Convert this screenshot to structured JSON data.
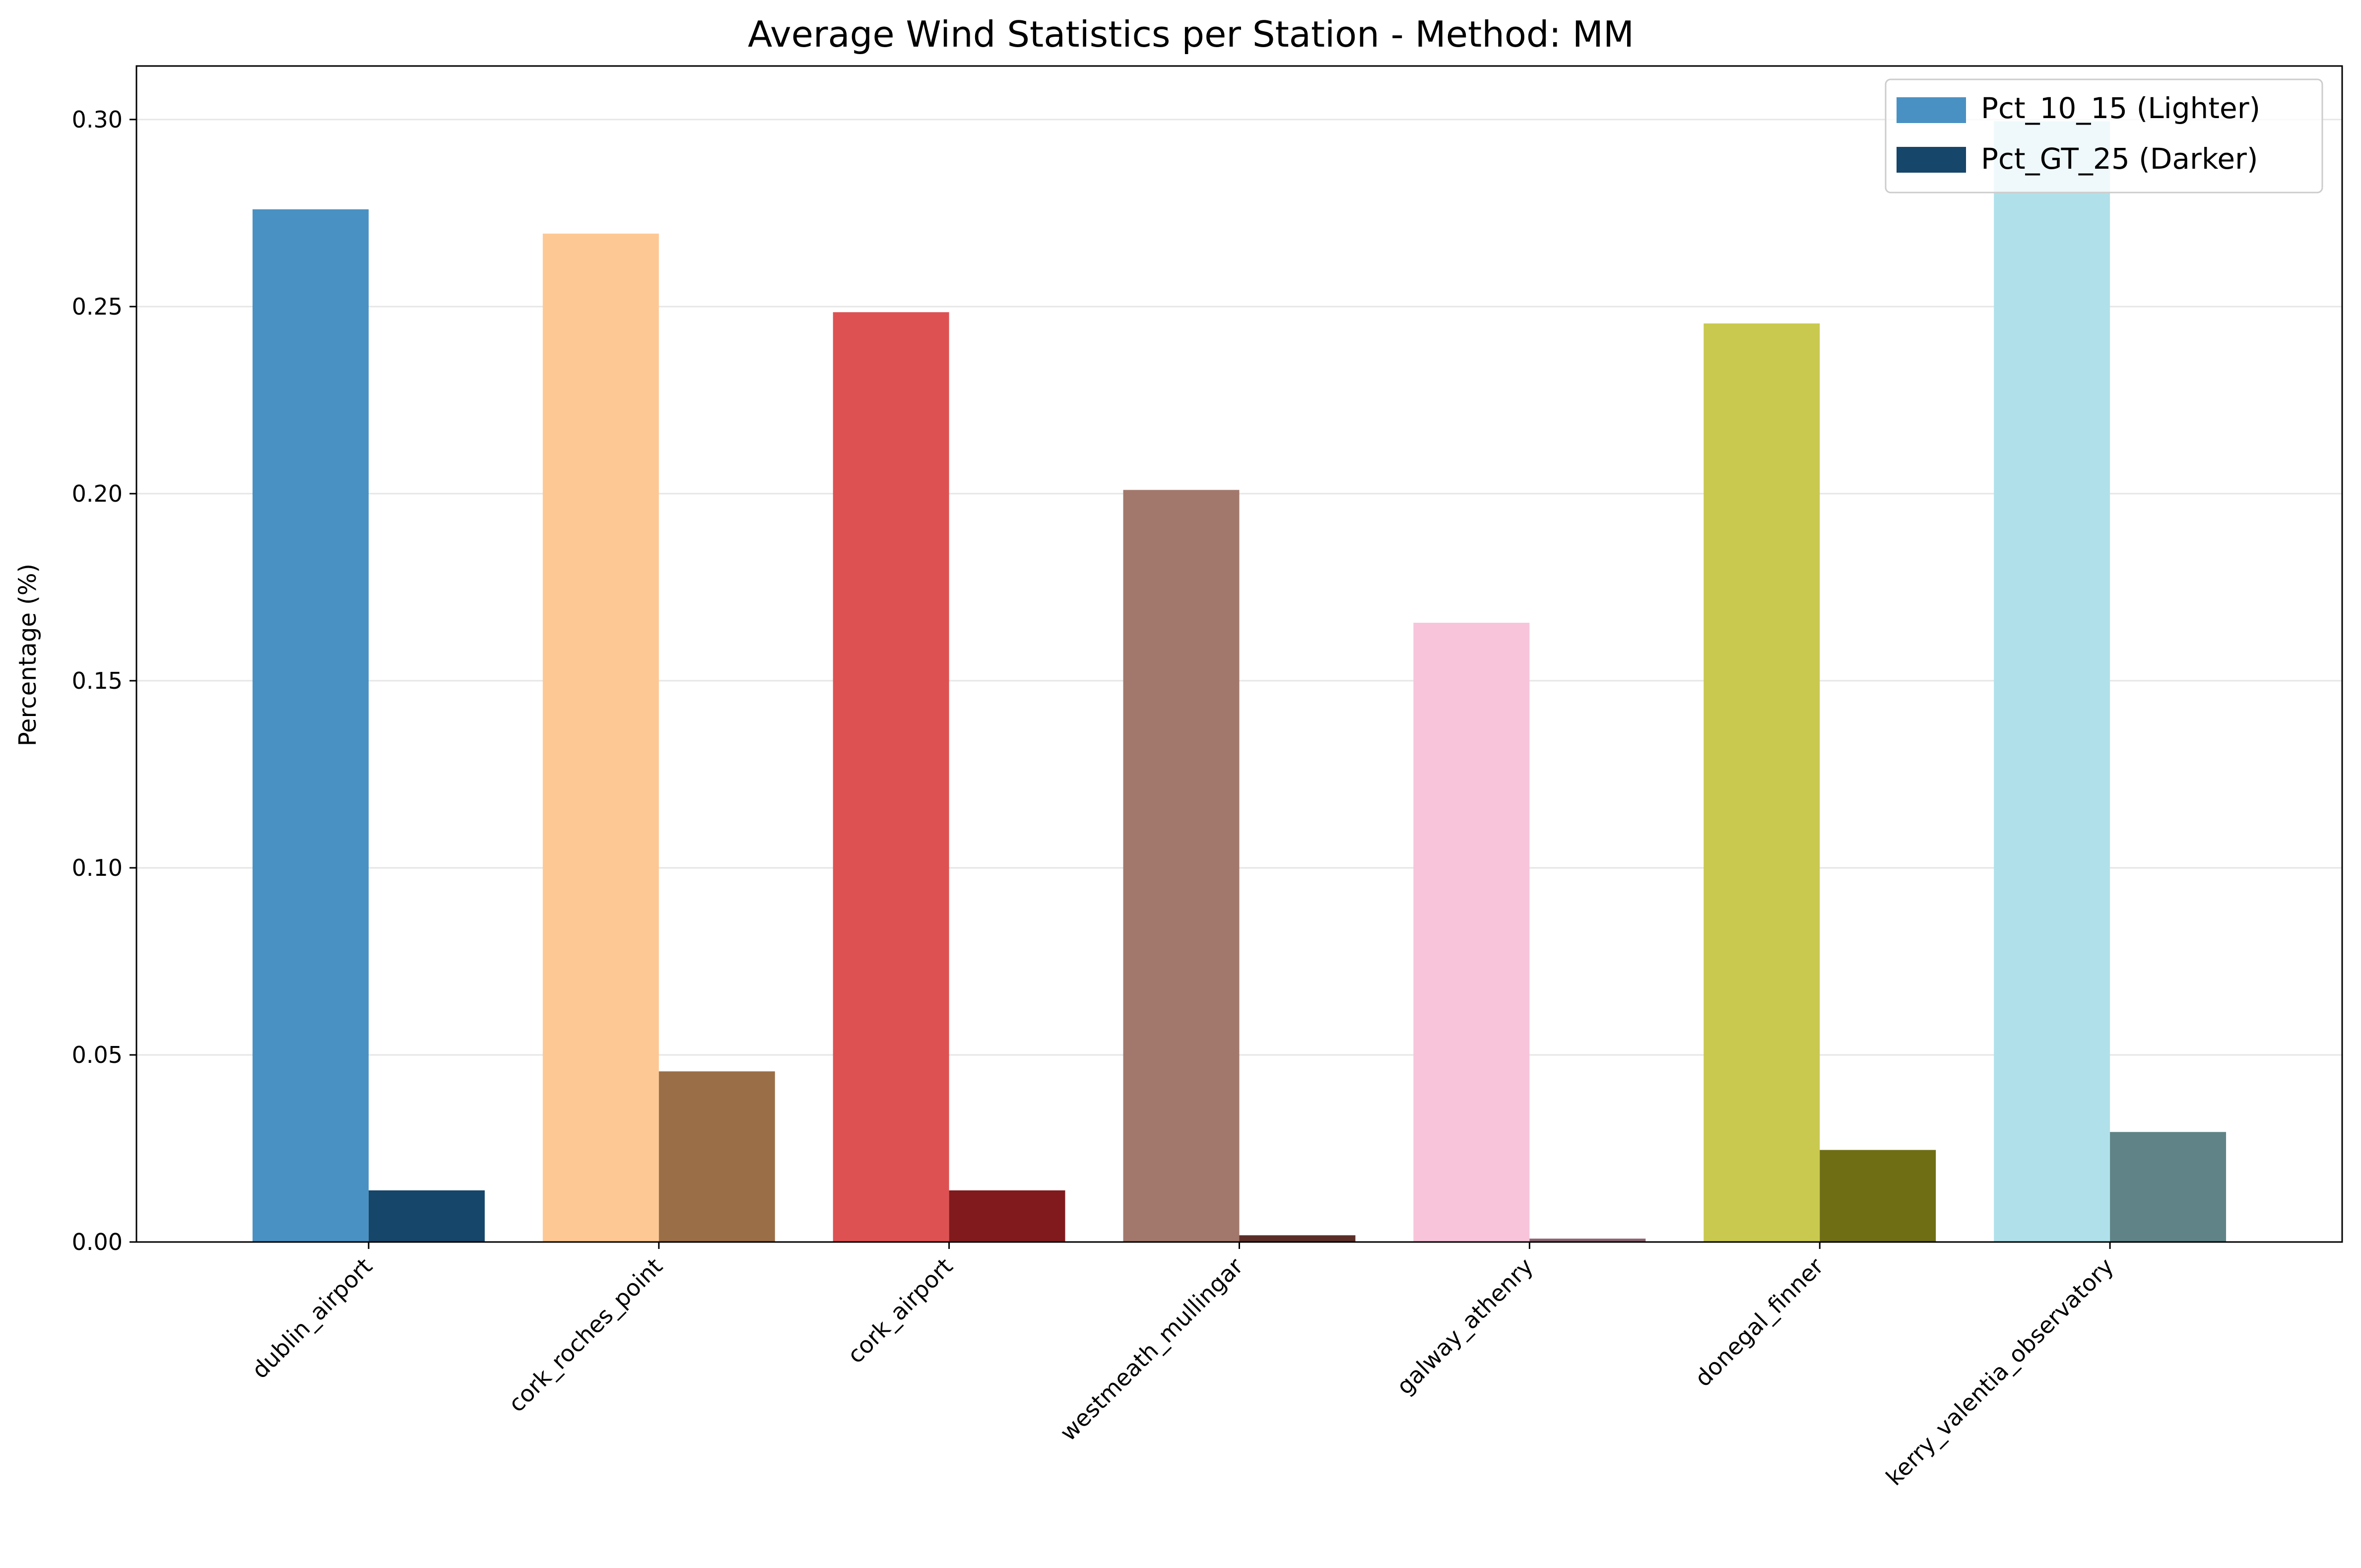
{
  "chart_data": {
    "type": "bar",
    "title": "Average Wind Statistics per Station - Method: MM",
    "xlabel": "",
    "ylabel": "Percentage (%)",
    "ylim": [
      0,
      0.3143
    ],
    "yticks": [
      "0.00",
      "0.05",
      "0.10",
      "0.15",
      "0.20",
      "0.25",
      "0.30"
    ],
    "grid": "horizontal",
    "legend_position": "top-right",
    "categories": [
      "dublin_airport",
      "cork_roches_point",
      "cork_airport",
      "westmeath_mullingar",
      "galway_athenry",
      "donegal_finner",
      "kerry_valentia_observatory"
    ],
    "series": [
      {
        "name": "Pct_10_15 (Lighter)",
        "values": [
          0.276,
          0.2695,
          0.2485,
          0.201,
          0.1655,
          0.2455,
          0.2995
        ],
        "colors": [
          "#4a91c3",
          "#fec894",
          "#de5152",
          "#a2786d",
          "#f8c4da",
          "#c9c94f",
          "#b0e1ea"
        ],
        "legend_color": "#4a91c3"
      },
      {
        "name": "Pct_GT_25 (Darker)",
        "values": [
          0.0138,
          0.0456,
          0.0138,
          0.0018,
          0.0009,
          0.0246,
          0.0294
        ],
        "colors": [
          "#16466a",
          "#9a6f48",
          "#811a1d",
          "#5a2e27",
          "#8b6370",
          "#6f6e15",
          "#5f8387"
        ],
        "legend_color": "#16466a"
      }
    ]
  }
}
